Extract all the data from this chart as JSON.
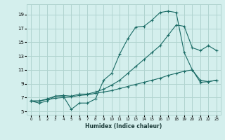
{
  "xlabel": "Humidex (Indice chaleur)",
  "xlim": [
    -0.5,
    23.5
  ],
  "ylim": [
    4.5,
    20.5
  ],
  "xticks": [
    0,
    1,
    2,
    3,
    4,
    5,
    6,
    7,
    8,
    9,
    10,
    11,
    12,
    13,
    14,
    15,
    16,
    17,
    18,
    19,
    20,
    21,
    22,
    23
  ],
  "yticks": [
    5,
    7,
    9,
    11,
    13,
    15,
    17,
    19
  ],
  "background_color": "#d4efed",
  "grid_color": "#b0d4d0",
  "line_color": "#1a6b65",
  "line1_x": [
    0,
    1,
    2,
    3,
    4,
    5,
    6,
    7,
    8,
    9,
    10,
    11,
    12,
    13,
    14,
    15,
    16,
    17,
    18,
    19,
    20,
    21,
    22,
    23
  ],
  "line1_y": [
    6.5,
    6.2,
    6.5,
    7.2,
    7.2,
    5.3,
    6.2,
    6.2,
    6.8,
    9.5,
    10.5,
    13.3,
    15.5,
    17.2,
    17.3,
    18.2,
    19.3,
    19.5,
    19.3,
    13.5,
    11.0,
    9.5,
    9.3,
    9.5
  ],
  "line2_x": [
    0,
    1,
    2,
    3,
    4,
    5,
    6,
    7,
    8,
    9,
    10,
    11,
    12,
    13,
    14,
    15,
    16,
    17,
    18,
    19,
    20,
    21,
    22,
    23
  ],
  "line2_y": [
    6.5,
    6.5,
    6.8,
    7.2,
    7.3,
    7.2,
    7.5,
    7.5,
    7.8,
    8.2,
    8.8,
    9.5,
    10.5,
    11.5,
    12.5,
    13.5,
    14.5,
    16.0,
    17.5,
    17.3,
    14.2,
    13.8,
    14.5,
    13.8
  ],
  "line3_x": [
    0,
    1,
    2,
    3,
    4,
    5,
    6,
    7,
    8,
    9,
    10,
    11,
    12,
    13,
    14,
    15,
    16,
    17,
    18,
    19,
    20,
    21,
    22,
    23
  ],
  "line3_y": [
    6.5,
    6.5,
    6.7,
    6.9,
    7.0,
    7.1,
    7.3,
    7.4,
    7.6,
    7.8,
    8.0,
    8.3,
    8.6,
    8.9,
    9.2,
    9.5,
    9.8,
    10.2,
    10.5,
    10.8,
    11.0,
    9.2,
    9.3,
    9.5
  ]
}
